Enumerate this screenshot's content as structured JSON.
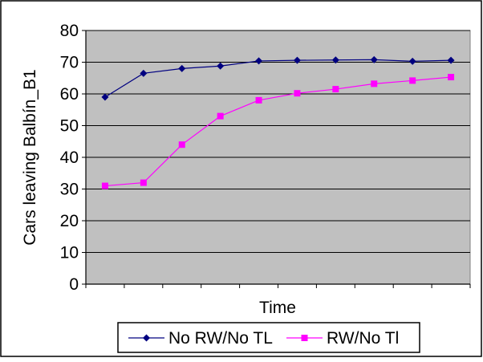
{
  "chart_data": {
    "type": "line",
    "title": "",
    "xlabel": "Time",
    "ylabel": "Cars leaving Balbín_B1",
    "ylim": [
      0,
      80
    ],
    "yticks": [
      0,
      10,
      20,
      30,
      40,
      50,
      60,
      70,
      80
    ],
    "x": [
      1,
      2,
      3,
      4,
      5,
      6,
      7,
      8,
      9,
      10
    ],
    "grid": "horizontal",
    "legend_position": "bottom",
    "plot_background": "#c0c0c0",
    "series": [
      {
        "name": "No RW/No TL",
        "color": "#000080",
        "marker": "diamond",
        "values": [
          59,
          66.5,
          68,
          68.8,
          70.4,
          70.6,
          70.7,
          70.8,
          70.3,
          70.6
        ]
      },
      {
        "name": "RW/No Tl",
        "color": "#ff00ff",
        "marker": "square",
        "values": [
          31,
          32,
          44,
          53,
          58,
          60.2,
          61.5,
          63.2,
          64.2,
          65.3
        ]
      }
    ]
  }
}
